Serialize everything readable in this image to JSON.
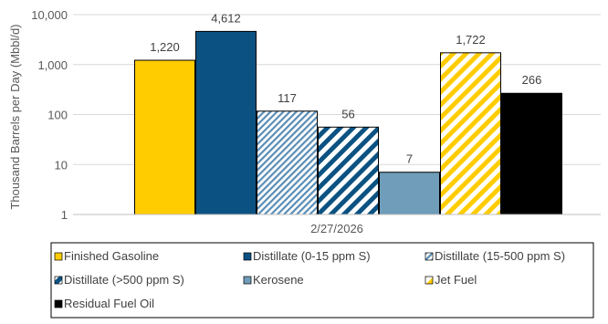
{
  "chart_data": {
    "type": "bar",
    "log_scale": true,
    "ylim": [
      1,
      10000
    ],
    "ylabel": "Thousand Barrels per Day (Mbbl/d)",
    "y_ticks": [
      "1",
      "10",
      "100",
      "1,000",
      "10,000"
    ],
    "categories": [
      "2/27/2026"
    ],
    "grid": true,
    "legend_position": "bottom",
    "series": [
      {
        "name": "Finished Gasoline",
        "value": 1220,
        "label": "1,220",
        "color": "#FFCC00",
        "pattern": "solid"
      },
      {
        "name": "Distillate (0-15 ppm S)",
        "value": 4612,
        "label": "4,612",
        "color": "#0B5283",
        "pattern": "solid"
      },
      {
        "name": "Distillate (15-500 ppm S)",
        "value": 117,
        "label": "117",
        "color": "#5A8DB5",
        "pattern": "diagonal-light"
      },
      {
        "name": "Distillate (>500 ppm S)",
        "value": 56,
        "label": "56",
        "color": "#0B5283",
        "pattern": "diagonal-wide"
      },
      {
        "name": "Kerosene",
        "value": 7,
        "label": "7",
        "color": "#6F9DBA",
        "pattern": "solid"
      },
      {
        "name": "Jet Fuel",
        "value": 1722,
        "label": "1,722",
        "color": "#FFCC00",
        "pattern": "diagonal-wide"
      },
      {
        "name": "Residual Fuel Oil",
        "value": 266,
        "label": "266",
        "color": "#000000",
        "pattern": "solid"
      }
    ]
  }
}
